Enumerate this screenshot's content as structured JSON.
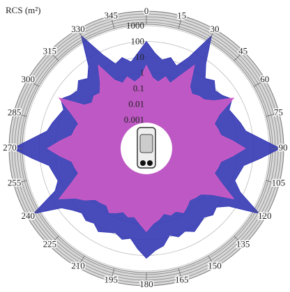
{
  "chart_data": {
    "type": "polar",
    "title": "RCS (m²)",
    "x": [
      0,
      5,
      10,
      15,
      20,
      25,
      30,
      35,
      40,
      45,
      50,
      55,
      60,
      65,
      70,
      75,
      80,
      85,
      90,
      95,
      100,
      105,
      110,
      115,
      120,
      125,
      130,
      135,
      140,
      145,
      150,
      155,
      160,
      165,
      170,
      175,
      180,
      185,
      190,
      195,
      200,
      205,
      210,
      215,
      220,
      225,
      230,
      235,
      240,
      245,
      250,
      255,
      260,
      265,
      270,
      275,
      280,
      285,
      290,
      295,
      300,
      305,
      310,
      315,
      320,
      325,
      330,
      335,
      340,
      345,
      350,
      355
    ],
    "xticks": [
      0,
      15,
      30,
      45,
      60,
      75,
      90,
      105,
      120,
      135,
      150,
      165,
      180,
      195,
      210,
      225,
      240,
      255,
      270,
      285,
      300,
      315,
      330,
      345
    ],
    "series": [
      {
        "color": "#3438b4",
        "values": [
          100,
          20,
          8,
          15,
          6,
          40,
          3000,
          60,
          10,
          20,
          8,
          12,
          30,
          10,
          15,
          25,
          40,
          300,
          5000,
          300,
          30,
          20,
          15,
          60,
          3000,
          40,
          10,
          15,
          8,
          12,
          20,
          10,
          15,
          8,
          30,
          50,
          150,
          40,
          10,
          15,
          8,
          12,
          20,
          10,
          15,
          10,
          20,
          60,
          3000,
          40,
          15,
          20,
          30,
          300,
          5000,
          300,
          40,
          25,
          15,
          10,
          30,
          12,
          8,
          20,
          10,
          40,
          3000,
          60,
          8,
          15,
          6,
          20
        ]
      },
      {
        "color": "#d45ac6",
        "values": [
          3,
          0.5,
          0.3,
          0.8,
          0.4,
          2,
          20,
          1,
          0.5,
          0.8,
          1,
          3,
          40,
          2,
          0.6,
          0.8,
          1,
          5,
          30,
          5,
          1,
          0.8,
          0.6,
          3,
          40,
          2,
          0.5,
          0.4,
          0.3,
          0.5,
          0.8,
          0.4,
          0.5,
          0.3,
          0.6,
          1,
          3,
          1,
          0.4,
          0.5,
          0.3,
          0.5,
          0.8,
          0.4,
          0.5,
          0.6,
          2,
          5,
          40,
          3,
          0.6,
          0.8,
          1,
          5,
          30,
          5,
          1,
          0.8,
          0.6,
          3,
          40,
          1,
          0.5,
          0.8,
          0.6,
          2,
          20,
          1,
          0.4,
          0.8,
          0.3,
          0.5
        ]
      }
    ],
    "ylim": [
      0.001,
      1000
    ],
    "yticks": [
      0.001,
      0.01,
      0.1,
      1,
      10,
      100,
      1000
    ],
    "log_scale": true,
    "grid": true
  }
}
